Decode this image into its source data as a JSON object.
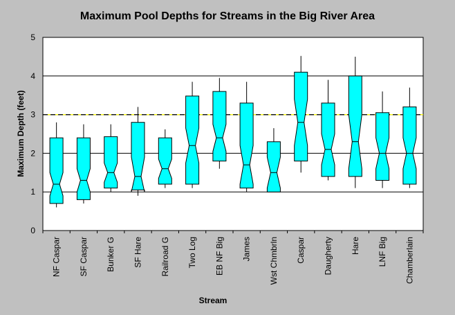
{
  "chart_data": {
    "type": "box",
    "title": "Maximum Pool Depths for Streams in the Big River Area",
    "xlabel": "Stream",
    "ylabel": "Maximum Depth (feet)",
    "ylim": [
      0,
      5
    ],
    "yticks": [
      "0",
      "1",
      "2",
      "3",
      "4",
      "5"
    ],
    "grid": "horizontal",
    "reference_line": {
      "value": 3.0,
      "style": "dashed",
      "color": "#ffff00"
    },
    "box_color": "#00ffff",
    "categories": [
      "NF Caspar",
      "SF Caspar",
      "Bunker G",
      "SF Hare",
      "Railroad G",
      "Two Log",
      "EB NF Big",
      "James",
      "Wst Chmbrln",
      "Caspar",
      "Daugherty",
      "Hare",
      "LNF Big",
      "Chamberlain"
    ],
    "boxes": [
      {
        "min": 0.6,
        "q1": 0.7,
        "median": 1.2,
        "q3": 2.4,
        "max": 2.8,
        "notch_low": 0.9,
        "notch_high": 1.5
      },
      {
        "min": 0.7,
        "q1": 0.8,
        "median": 1.3,
        "q3": 2.4,
        "max": 2.75,
        "notch_low": 1.0,
        "notch_high": 1.6
      },
      {
        "min": 1.0,
        "q1": 1.1,
        "median": 1.5,
        "q3": 2.43,
        "max": 2.75,
        "notch_low": 1.25,
        "notch_high": 1.75
      },
      {
        "min": 0.9,
        "q1": 1.05,
        "median": 1.4,
        "q3": 2.8,
        "max": 3.2,
        "notch_low": 1.0,
        "notch_high": 1.9
      },
      {
        "min": 1.1,
        "q1": 1.2,
        "median": 1.6,
        "q3": 2.4,
        "max": 2.62,
        "notch_low": 1.35,
        "notch_high": 1.85
      },
      {
        "min": 1.1,
        "q1": 1.2,
        "median": 2.2,
        "q3": 3.48,
        "max": 3.85,
        "notch_low": 1.75,
        "notch_high": 2.65
      },
      {
        "min": 1.6,
        "q1": 1.8,
        "median": 2.4,
        "q3": 3.6,
        "max": 3.95,
        "notch_low": 2.05,
        "notch_high": 2.75
      },
      {
        "min": 1.0,
        "q1": 1.1,
        "median": 1.7,
        "q3": 3.3,
        "max": 3.85,
        "notch_low": 1.2,
        "notch_high": 2.2
      },
      {
        "min": 1.0,
        "q1": 1.0,
        "median": 1.5,
        "q3": 2.3,
        "max": 2.65,
        "notch_low": 1.1,
        "notch_high": 1.9
      },
      {
        "min": 1.5,
        "q1": 1.8,
        "median": 2.8,
        "q3": 4.1,
        "max": 4.52,
        "notch_low": 2.2,
        "notch_high": 3.4
      },
      {
        "min": 1.3,
        "q1": 1.4,
        "median": 2.1,
        "q3": 3.3,
        "max": 3.9,
        "notch_low": 1.7,
        "notch_high": 2.5
      },
      {
        "min": 1.1,
        "q1": 1.4,
        "median": 2.3,
        "q3": 4.0,
        "max": 4.5,
        "notch_low": 1.6,
        "notch_high": 3.0
      },
      {
        "min": 1.1,
        "q1": 1.3,
        "median": 2.0,
        "q3": 3.05,
        "max": 3.6,
        "notch_low": 1.6,
        "notch_high": 2.4
      },
      {
        "min": 1.1,
        "q1": 1.2,
        "median": 2.0,
        "q3": 3.2,
        "max": 3.7,
        "notch_low": 1.6,
        "notch_high": 2.4
      }
    ]
  }
}
